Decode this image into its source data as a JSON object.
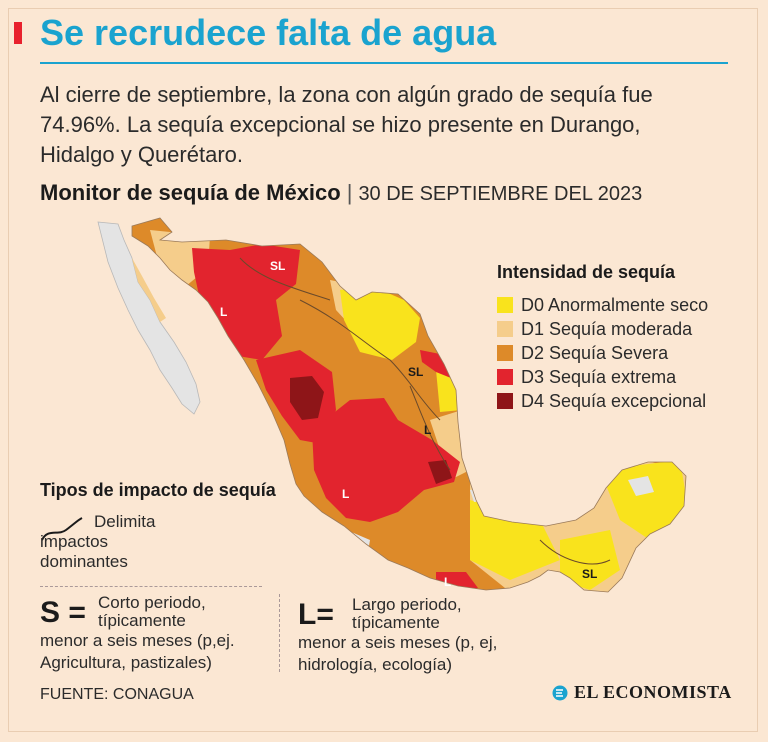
{
  "header": {
    "title": "Se recrudece falta de agua",
    "intro": "Al cierre de septiembre, la zona con algún grado de sequía fue 74.96%. La sequía excepcional se hizo presente en Durango, Hidalgo y Querétaro.",
    "subtitle": "Monitor de sequía de México",
    "separator": "|",
    "date": "30 DE SEPTIEMBRE DEL 2023"
  },
  "colors": {
    "D0": "#f9e31c",
    "D1": "#f5cd8b",
    "D2": "#dd8a29",
    "D3": "#e2242e",
    "D4": "#8e1518",
    "no_drought": "#e4e4e4",
    "accent": "#1aa3cf"
  },
  "map": {
    "labels": [
      "SL",
      "L",
      "SL",
      "L",
      "L",
      "L",
      "SL"
    ]
  },
  "legend": {
    "title": "Intensidad de sequía",
    "items": [
      {
        "code": "D0",
        "label": "D0 Anormalmente seco",
        "color": "#f9e31c"
      },
      {
        "code": "D1",
        "label": "D1 Sequía moderada",
        "color": "#f5cd8b"
      },
      {
        "code": "D2",
        "label": "D2 Sequía Severa",
        "color": "#dd8a29"
      },
      {
        "code": "D3",
        "label": "D3 Sequía extrema",
        "color": "#e2242e"
      },
      {
        "code": "D4",
        "label": "D4 Sequía excepcional",
        "color": "#8e1518"
      }
    ]
  },
  "impact": {
    "title": "Tipos de impacto de sequía",
    "line_label": "Delimita impactos dominantes",
    "short": {
      "letter": "S =",
      "line1": "Corto periodo,",
      "line2": "típicamente",
      "line3": "menor a seis meses (p,ej.",
      "line4": "Agricultura, pastizales)"
    },
    "long": {
      "letter": "L=",
      "line1": "Largo periodo,",
      "line2": "típicamente",
      "line3": "menor a seis meses (p, ej,",
      "line4": "hidrología, ecología)"
    }
  },
  "footer": {
    "source": "FUENTE: CONAGUA",
    "brand": "EL ECONOMISTA"
  }
}
